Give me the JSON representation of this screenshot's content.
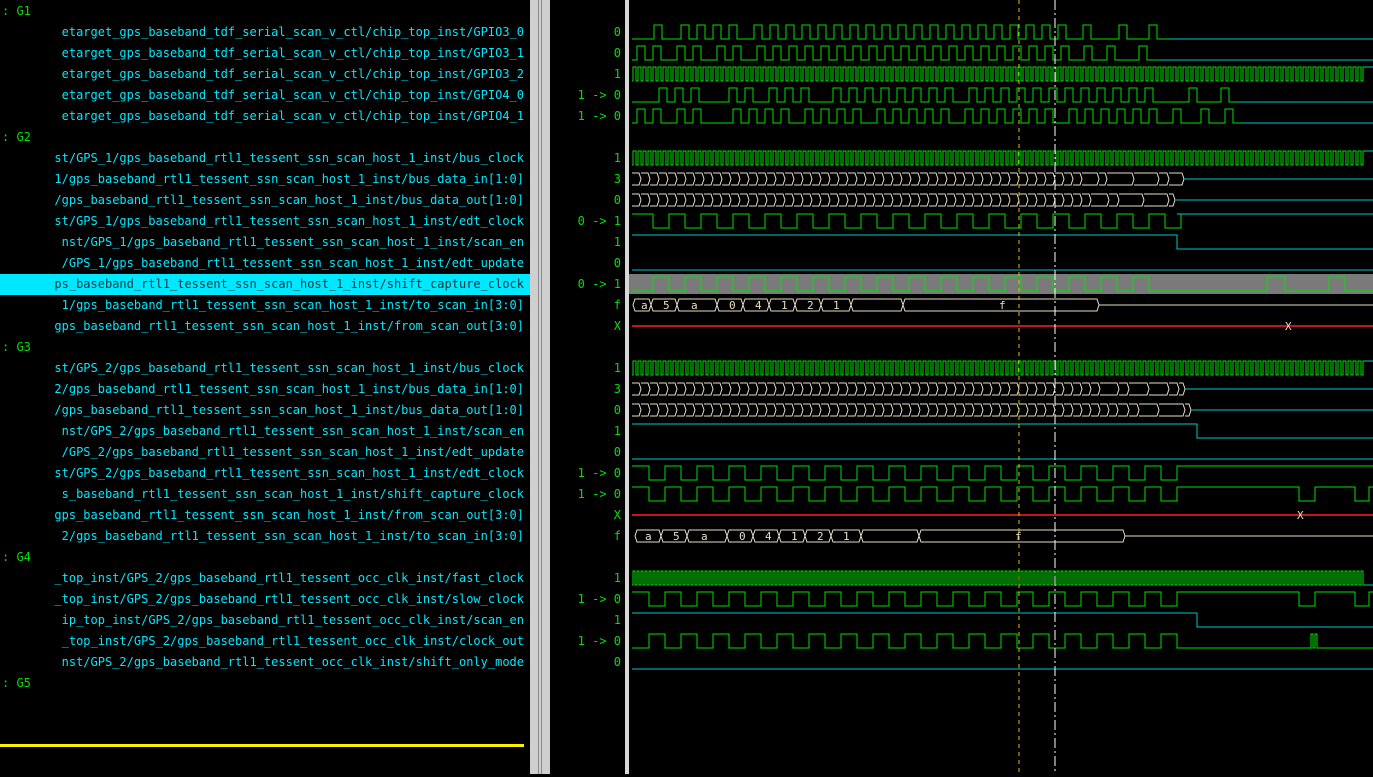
{
  "names_panel": {
    "rows": [
      {
        "type": "group",
        "label": "G1"
      },
      {
        "type": "sig",
        "label": "etarget_gps_baseband_tdf_serial_scan_v_ctl/chip_top_inst/GPIO3_0",
        "value": "0"
      },
      {
        "type": "sig",
        "label": "etarget_gps_baseband_tdf_serial_scan_v_ctl/chip_top_inst/GPIO3_1",
        "value": "0"
      },
      {
        "type": "sig",
        "label": "etarget_gps_baseband_tdf_serial_scan_v_ctl/chip_top_inst/GPIO3_2",
        "value": "1"
      },
      {
        "type": "sig",
        "label": "etarget_gps_baseband_tdf_serial_scan_v_ctl/chip_top_inst/GPIO4_0",
        "value": "1 -> 0"
      },
      {
        "type": "sig",
        "label": "etarget_gps_baseband_tdf_serial_scan_v_ctl/chip_top_inst/GPIO4_1",
        "value": "1 -> 0"
      },
      {
        "type": "group",
        "label": "G2"
      },
      {
        "type": "sig",
        "label": "st/GPS_1/gps_baseband_rtl1_tessent_ssn_scan_host_1_inst/bus_clock",
        "value": "1"
      },
      {
        "type": "sig",
        "label": "1/gps_baseband_rtl1_tessent_ssn_scan_host_1_inst/bus_data_in[1:0]",
        "value": "3"
      },
      {
        "type": "sig",
        "label": "/gps_baseband_rtl1_tessent_ssn_scan_host_1_inst/bus_data_out[1:0]",
        "value": "0"
      },
      {
        "type": "sig",
        "label": "st/GPS_1/gps_baseband_rtl1_tessent_ssn_scan_host_1_inst/edt_clock",
        "value": "0 -> 1"
      },
      {
        "type": "sig",
        "label": "nst/GPS_1/gps_baseband_rtl1_tessent_ssn_scan_host_1_inst/scan_en",
        "value": "1"
      },
      {
        "type": "sig",
        "label": "/GPS_1/gps_baseband_rtl1_tessent_ssn_scan_host_1_inst/edt_update",
        "value": "0"
      },
      {
        "type": "sig",
        "label": "ps_baseband_rtl1_tessent_ssn_scan_host_1_inst/shift_capture_clock",
        "value": "0 -> 1",
        "selected": true
      },
      {
        "type": "sig",
        "label": "1/gps_baseband_rtl1_tessent_ssn_scan_host_1_inst/to_scan_in[3:0]",
        "value": "f"
      },
      {
        "type": "sig",
        "label": "gps_baseband_rtl1_tessent_ssn_scan_host_1_inst/from_scan_out[3:0]",
        "value": "X"
      },
      {
        "type": "group",
        "label": "G3"
      },
      {
        "type": "sig",
        "label": "st/GPS_2/gps_baseband_rtl1_tessent_ssn_scan_host_1_inst/bus_clock",
        "value": "1"
      },
      {
        "type": "sig",
        "label": "2/gps_baseband_rtl1_tessent_ssn_scan_host_1_inst/bus_data_in[1:0]",
        "value": "3"
      },
      {
        "type": "sig",
        "label": "/gps_baseband_rtl1_tessent_ssn_scan_host_1_inst/bus_data_out[1:0]",
        "value": "0"
      },
      {
        "type": "sig",
        "label": "nst/GPS_2/gps_baseband_rtl1_tessent_ssn_scan_host_1_inst/scan_en",
        "value": "1"
      },
      {
        "type": "sig",
        "label": "/GPS_2/gps_baseband_rtl1_tessent_ssn_scan_host_1_inst/edt_update",
        "value": "0"
      },
      {
        "type": "sig",
        "label": "st/GPS_2/gps_baseband_rtl1_tessent_ssn_scan_host_1_inst/edt_clock",
        "value": "1 -> 0"
      },
      {
        "type": "sig",
        "label": "s_baseband_rtl1_tessent_ssn_scan_host_1_inst/shift_capture_clock",
        "value": "1 -> 0"
      },
      {
        "type": "sig",
        "label": "gps_baseband_rtl1_tessent_ssn_scan_host_1_inst/from_scan_out[3:0]",
        "value": "X"
      },
      {
        "type": "sig",
        "label": "2/gps_baseband_rtl1_tessent_ssn_scan_host_1_inst/to_scan_in[3:0]",
        "value": "f"
      },
      {
        "type": "group",
        "label": "G4"
      },
      {
        "type": "sig",
        "label": "_top_inst/GPS_2/gps_baseband_rtl1_tessent_occ_clk_inst/fast_clock",
        "value": "1"
      },
      {
        "type": "sig",
        "label": "_top_inst/GPS_2/gps_baseband_rtl1_tessent_occ_clk_inst/slow_clock",
        "value": "1 -> 0"
      },
      {
        "type": "sig",
        "label": "ip_top_inst/GPS_2/gps_baseband_rtl1_tessent_occ_clk_inst/scan_en",
        "value": "1"
      },
      {
        "type": "sig",
        "label": "_top_inst/GPS_2/gps_baseband_rtl1_tessent_occ_clk_inst/clock_out",
        "value": "1 -> 0"
      },
      {
        "type": "sig",
        "label": "nst/GPS_2/gps_baseband_rtl1_tessent_occ_clk_inst/shift_only_mode",
        "value": "0"
      },
      {
        "type": "group",
        "label": "G5"
      }
    ]
  },
  "bus_labels": {
    "to_scan_in": [
      "a",
      "5",
      "a",
      "0",
      "4",
      "1",
      "2",
      "1",
      "f"
    ],
    "from_scan_out": "X",
    "data_bus": "0"
  },
  "colors": {
    "signal": "#00e000",
    "flat": "#00c8c8",
    "bus": "#e8dcc8",
    "undefined": "#ff2020",
    "selected_row": "#00e8ff",
    "cursor_yellow": "#e0c000",
    "cursor_white": "#ffffff"
  }
}
